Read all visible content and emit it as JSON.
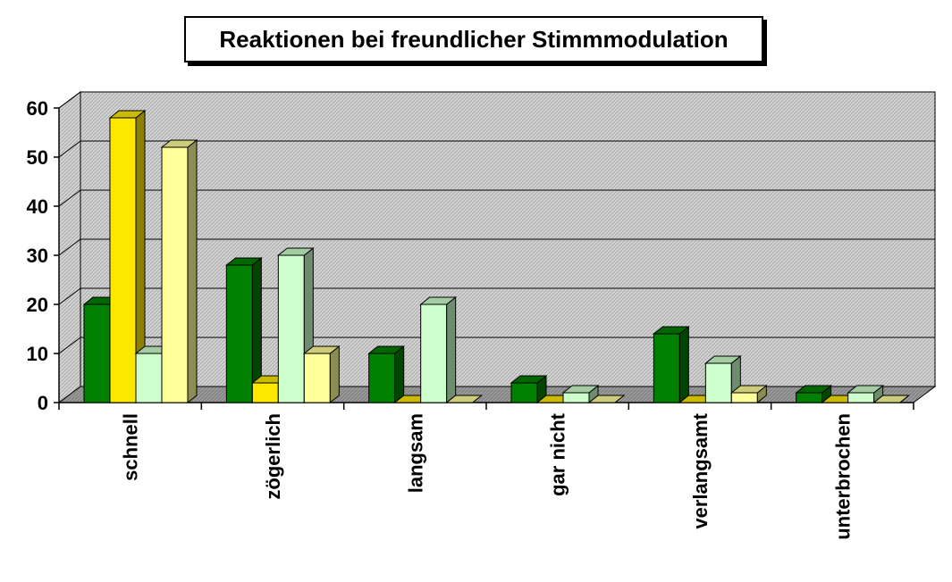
{
  "chart_data": {
    "type": "bar",
    "title": "Reaktionen bei freundlicher Stimmmodulation",
    "categories": [
      "schnell",
      "zögerlich",
      "langsam",
      "gar nicht",
      "verlangsamt",
      "unterbrochen"
    ],
    "series": [
      {
        "values": [
          20,
          28,
          10,
          4,
          14,
          2
        ],
        "color": "#008000"
      },
      {
        "values": [
          58,
          4,
          0,
          0,
          0,
          0
        ],
        "color": "#FFE800"
      },
      {
        "values": [
          10,
          30,
          20,
          2,
          8,
          2
        ],
        "color": "#CCFFCC"
      },
      {
        "values": [
          52,
          10,
          0,
          0,
          2,
          0
        ],
        "color": "#FFFF99"
      }
    ],
    "ylim": [
      0,
      60
    ],
    "yticks": [
      0,
      10,
      20,
      30,
      40,
      50,
      60
    ],
    "xlabel": "",
    "ylabel": "",
    "legend": "none",
    "grid": true,
    "style": "3d-column"
  }
}
